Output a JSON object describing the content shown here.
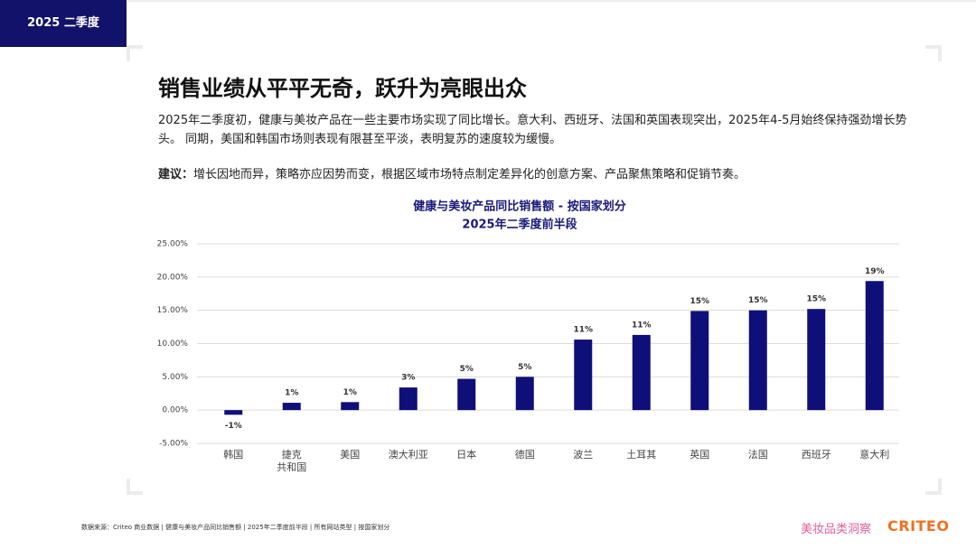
{
  "header": {
    "tab": "2025 二季度"
  },
  "title": "销售业绩从平平无奇，跃升为亮眼出众",
  "paragraph": "2025年二季度初，健康与美妆产品在一些主要市场实现了同比增长。意大利、西班牙、法国和英国表现突出，2025年4-5月始终保持强劲增长势头。 同期，美国和韩国市场则表现有限甚至平淡，表明复苏的速度较为缓慢。",
  "recommendation": {
    "label": "建议：",
    "text": "增长因地而异，策略亦应因势而变，根据区域市场特点制定差异化的创意方案、产品聚焦策略和促销节奏。"
  },
  "chart_data": {
    "type": "bar",
    "title": "健康与美妆产品同比销售额 - 按国家划分",
    "subtitle": "2025年二季度前半段",
    "categories": [
      "韩国",
      "捷克\n共和国",
      "美国",
      "澳大利亚",
      "日本",
      "德国",
      "波兰",
      "土耳其",
      "英国",
      "法国",
      "西班牙",
      "意大利"
    ],
    "values": [
      -0.7,
      1.1,
      1.2,
      3.4,
      4.7,
      5.0,
      10.6,
      11.3,
      14.9,
      15.0,
      15.2,
      19.4
    ],
    "value_labels": [
      "-1%",
      "1%",
      "1%",
      "3%",
      "5%",
      "5%",
      "11%",
      "11%",
      "15%",
      "15%",
      "15%",
      "19%"
    ],
    "color": "#0f0f7a",
    "ylim": [
      -5,
      25
    ],
    "yticks": [
      {
        "value": -5,
        "label": "-5.00%"
      },
      {
        "value": 0,
        "label": "0.00%"
      },
      {
        "value": 5,
        "label": "5.00%"
      },
      {
        "value": 10,
        "label": "10.00%"
      },
      {
        "value": 15,
        "label": "15.00%"
      },
      {
        "value": 20,
        "label": "20.00%"
      },
      {
        "value": 25,
        "label": "25.00%"
      }
    ],
    "grid": true
  },
  "footer": {
    "source": "数据来源：Criteo 商业数据 | 健康与美妆产品同比销售额 | 2025年二季度前半段 | 所有网站类型 | 按国家划分",
    "brand_cn": "美妆品类洞察",
    "brand": "CRITEO"
  }
}
